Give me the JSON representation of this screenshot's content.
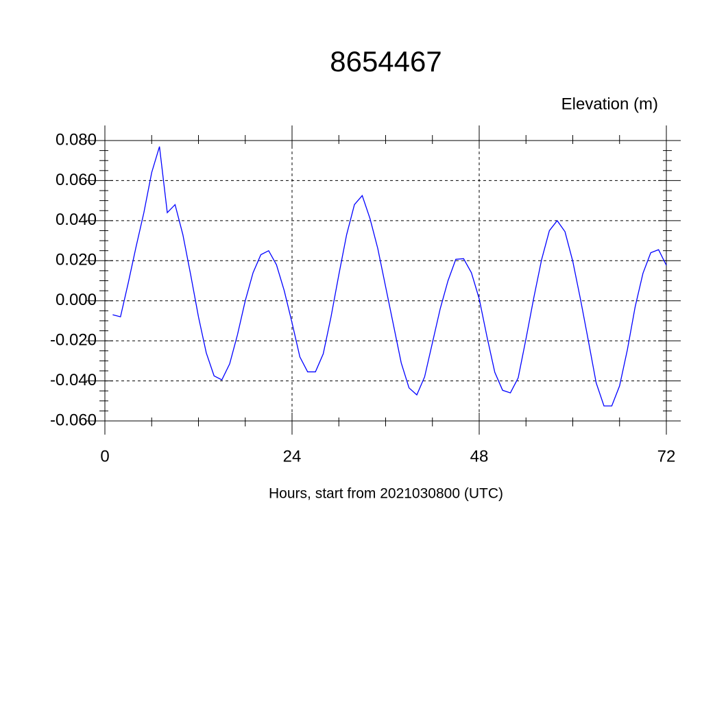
{
  "chart_data": {
    "type": "line",
    "title": "8654467",
    "subtitle": "Elevation (m)",
    "x_label": "Hours, start from 2021030800 (UTC)",
    "x": [
      1,
      2,
      3,
      4,
      5,
      6,
      7,
      8,
      9,
      10,
      11,
      12,
      13,
      14,
      15,
      16,
      17,
      18,
      19,
      20,
      21,
      22,
      23,
      24,
      25,
      26,
      27,
      28,
      29,
      30,
      31,
      32,
      33,
      34,
      35,
      36,
      37,
      38,
      39,
      40,
      41,
      42,
      43,
      44,
      45,
      46,
      47,
      48,
      49,
      50,
      51,
      52,
      53,
      54,
      55,
      56,
      57,
      58,
      59,
      60,
      61,
      62,
      63,
      64,
      65,
      66,
      67,
      68,
      69,
      70,
      71,
      72
    ],
    "series": [
      {
        "color": "#0000ff",
        "values": [
          -0.007,
          -0.008,
          0.009,
          0.027,
          0.044,
          0.064,
          0.077,
          0.044,
          0.048,
          0.033,
          0.013,
          -0.008,
          -0.026,
          -0.0375,
          -0.0395,
          -0.0315,
          -0.017,
          0.0,
          0.014,
          0.023,
          0.025,
          0.018,
          0.005,
          -0.011,
          -0.028,
          -0.0355,
          -0.0355,
          -0.0265,
          -0.008,
          0.013,
          0.033,
          0.048,
          0.0525,
          0.041,
          0.026,
          0.007,
          -0.012,
          -0.031,
          -0.0435,
          -0.047,
          -0.038,
          -0.021,
          -0.004,
          0.01,
          0.0207,
          0.021,
          0.014,
          0.001,
          -0.018,
          -0.0357,
          -0.0447,
          -0.046,
          -0.0385,
          -0.019,
          0.0015,
          0.0205,
          0.035,
          0.04,
          0.0345,
          0.0197,
          0.0005,
          -0.02,
          -0.041,
          -0.0525,
          -0.0525,
          -0.0425,
          -0.0245,
          -0.003,
          0.0137,
          0.024,
          0.0255,
          0.0177
        ]
      }
    ],
    "xlim": [
      0,
      72
    ],
    "xticks": [
      0,
      24,
      48,
      72
    ],
    "ylim": [
      -0.06,
      0.08
    ],
    "yticks": [
      {
        "value": -0.06,
        "label": "-0.060"
      },
      {
        "value": -0.04,
        "label": "-0.040"
      },
      {
        "value": -0.02,
        "label": "-0.020"
      },
      {
        "value": 0,
        "label": "0.000"
      },
      {
        "value": 0.02,
        "label": "0.020"
      },
      {
        "value": 0.04,
        "label": "0.040"
      },
      {
        "value": 0.06,
        "label": "0.060"
      },
      {
        "value": 0.08,
        "label": "0.080"
      }
    ],
    "grid": true
  }
}
